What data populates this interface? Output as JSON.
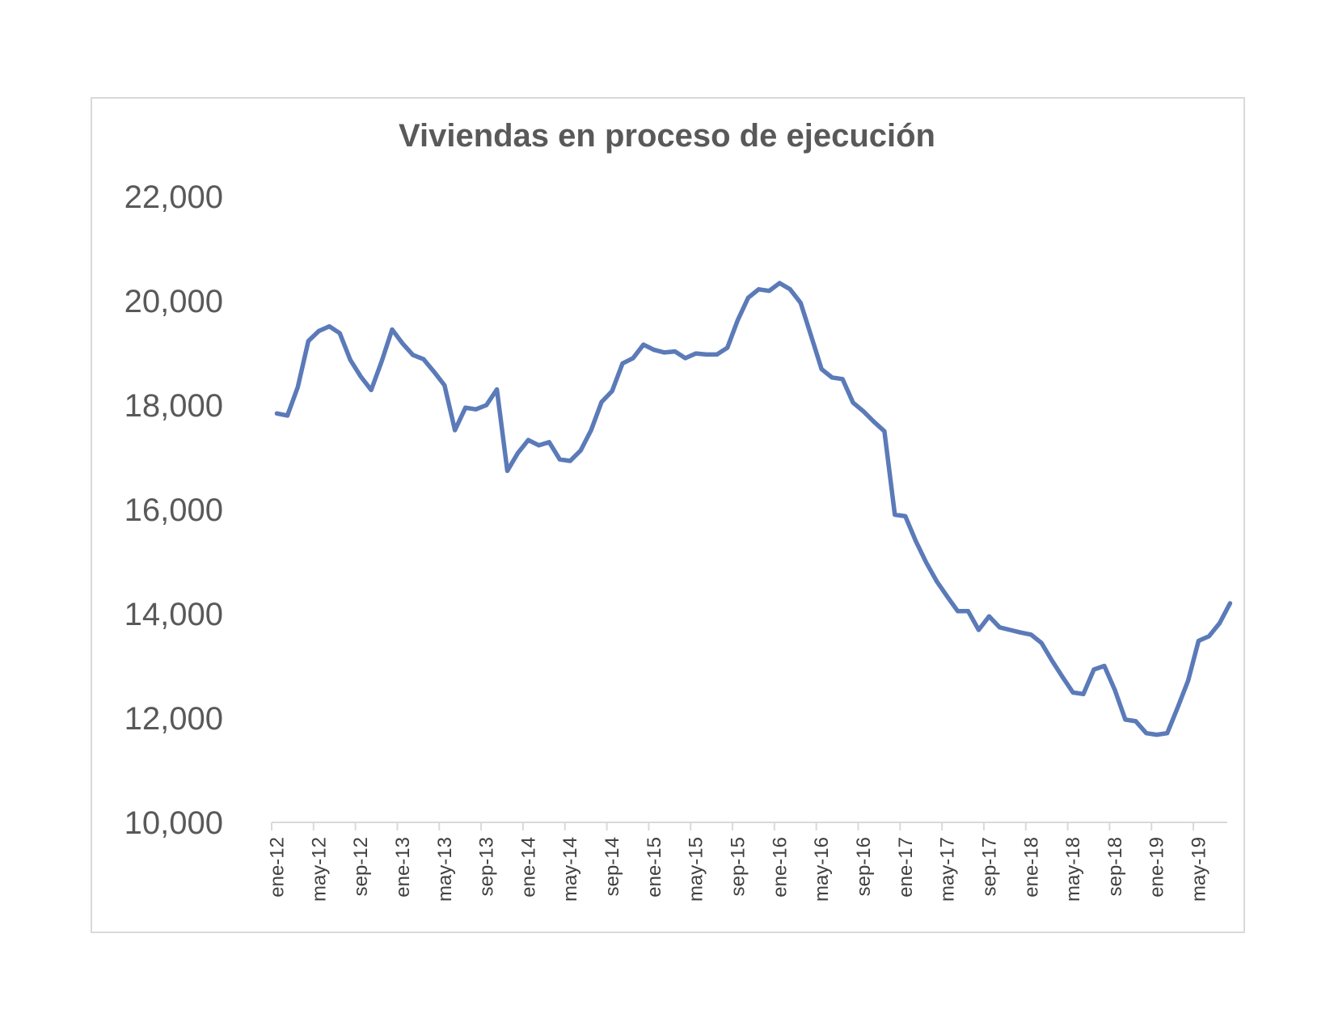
{
  "chart_data": {
    "type": "line",
    "title": "Viviendas en proceso de ejecución",
    "xlabel": "",
    "ylabel": "",
    "ylim": [
      10000,
      22000
    ],
    "yticks": [
      10000,
      12000,
      14000,
      16000,
      18000,
      20000,
      22000
    ],
    "ytick_labels": [
      "10,000",
      "12,000",
      "14,000",
      "16,000",
      "18,000",
      "20,000",
      "22,000"
    ],
    "xtick_labels": [
      "ene-12",
      "may-12",
      "sep-12",
      "ene-13",
      "may-13",
      "sep-13",
      "ene-14",
      "may-14",
      "sep-14",
      "ene-15",
      "may-15",
      "sep-15",
      "ene-16",
      "may-16",
      "sep-16",
      "ene-17",
      "may-17",
      "sep-17",
      "ene-18",
      "may-18",
      "sep-18",
      "ene-19",
      "may-19"
    ],
    "grid": false,
    "legend": "none",
    "line_color": "#5b7ab8",
    "series": [
      {
        "values": [
          17840,
          17800,
          18350,
          19230,
          19420,
          19510,
          19380,
          18870,
          18550,
          18290,
          18840,
          19450,
          19180,
          18960,
          18880,
          18640,
          18380,
          17520,
          17950,
          17920,
          18000,
          18300,
          16740,
          17080,
          17330,
          17230,
          17290,
          16960,
          16930,
          17130,
          17520,
          18060,
          18270,
          18800,
          18900,
          19160,
          19060,
          19010,
          19030,
          18900,
          18990,
          18970,
          18970,
          19100,
          19630,
          20060,
          20220,
          20190,
          20340,
          20220,
          19960,
          19330,
          18690,
          18530,
          18500,
          18050,
          17880,
          17680,
          17500,
          15900,
          15870,
          15390,
          14980,
          14620,
          14330,
          14050,
          14050,
          13690,
          13950,
          13740,
          13690,
          13640,
          13600,
          13440,
          13100,
          12790,
          12490,
          12460,
          12930,
          13000,
          12540,
          11970,
          11940,
          11710,
          11680,
          11710,
          12200,
          12720,
          13480,
          13570,
          13820,
          14200
        ]
      }
    ]
  }
}
